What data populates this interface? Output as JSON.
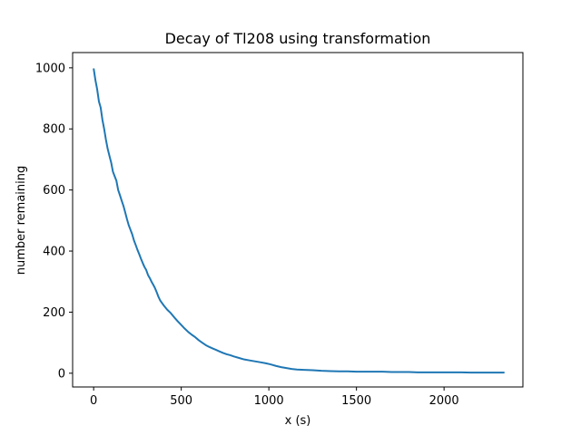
{
  "chart_data": {
    "type": "line",
    "title": "Decay of Tl208 using transformation",
    "xlabel": "x (s)",
    "ylabel": "number remaining",
    "xlim": [
      -120,
      2450
    ],
    "ylim": [
      -45,
      1050
    ],
    "xticks": [
      0,
      500,
      1000,
      1500,
      2000
    ],
    "yticks": [
      0,
      200,
      400,
      600,
      800,
      1000
    ],
    "grid": false,
    "colors": {
      "line": "#1f77b4",
      "axes": "#000000",
      "background": "#ffffff"
    },
    "series": [
      {
        "x": [
          0,
          10,
          20,
          30,
          40,
          50,
          60,
          70,
          80,
          90,
          100,
          110,
          120,
          130,
          140,
          150,
          160,
          170,
          180,
          190,
          200,
          210,
          220,
          230,
          240,
          250,
          260,
          270,
          280,
          290,
          300,
          310,
          320,
          330,
          340,
          350,
          360,
          370,
          380,
          390,
          400,
          420,
          440,
          460,
          480,
          500,
          520,
          540,
          560,
          580,
          600,
          620,
          640,
          660,
          680,
          700,
          720,
          740,
          760,
          780,
          800,
          830,
          860,
          890,
          920,
          950,
          980,
          1010,
          1040,
          1070,
          1100,
          1130,
          1160,
          1200,
          1250,
          1300,
          1350,
          1400,
          1450,
          1500,
          1550,
          1600,
          1650,
          1700,
          1750,
          1800,
          1850,
          1900,
          1950,
          2000,
          2050,
          2100,
          2150,
          2200,
          2250,
          2300,
          2345
        ],
        "y": [
          998,
          960,
          930,
          890,
          870,
          830,
          800,
          765,
          735,
          712,
          690,
          660,
          645,
          630,
          600,
          583,
          565,
          548,
          527,
          505,
          485,
          470,
          455,
          435,
          420,
          404,
          390,
          375,
          361,
          348,
          338,
          322,
          312,
          300,
          290,
          279,
          265,
          250,
          238,
          230,
          222,
          208,
          197,
          183,
          170,
          158,
          146,
          135,
          126,
          118,
          108,
          100,
          92,
          86,
          81,
          76,
          71,
          66,
          62,
          59,
          55,
          50,
          45,
          42,
          39,
          36,
          33,
          29,
          24,
          20,
          17,
          14,
          12,
          11,
          10,
          8,
          7,
          6,
          6,
          5,
          5,
          5,
          5,
          4,
          4,
          4,
          3,
          3,
          3,
          3,
          3,
          3,
          2,
          2,
          2,
          2,
          2
        ]
      }
    ]
  }
}
